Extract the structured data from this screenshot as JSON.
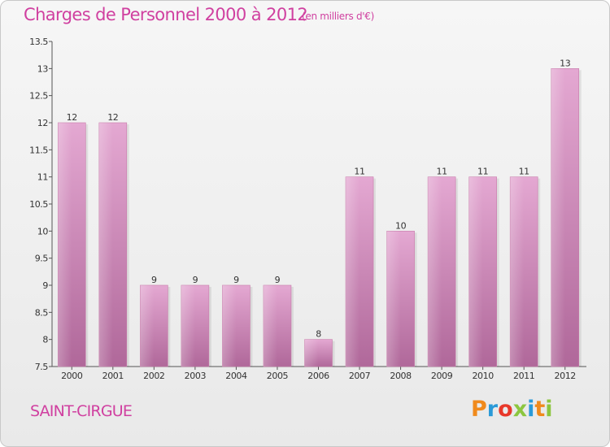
{
  "chart_data": {
    "type": "bar",
    "title": "Charges de Personnel 2000 à 2012",
    "subtitle": "(en milliers d'€)",
    "categories": [
      "2000",
      "2001",
      "2002",
      "2003",
      "2004",
      "2005",
      "2006",
      "2007",
      "2008",
      "2009",
      "2010",
      "2011",
      "2012"
    ],
    "values": [
      12,
      12,
      9,
      9,
      9,
      9,
      8,
      11,
      10,
      11,
      11,
      11,
      13
    ],
    "ylim": [
      7.5,
      13.5
    ],
    "yticks": [
      7.5,
      8,
      8.5,
      9,
      9.5,
      10,
      10.5,
      11,
      11.5,
      12,
      12.5,
      13,
      13.5
    ],
    "grid": false,
    "bar_color": "#d47fb0"
  },
  "footer": {
    "commune": "SAINT-CIRGUE",
    "logo": "Proxiti"
  },
  "logo_colors": [
    "#f08a1c",
    "#2a9ad8",
    "#e8382a",
    "#8cc63f",
    "#2a9ad8",
    "#f08a1c",
    "#8cc63f"
  ]
}
